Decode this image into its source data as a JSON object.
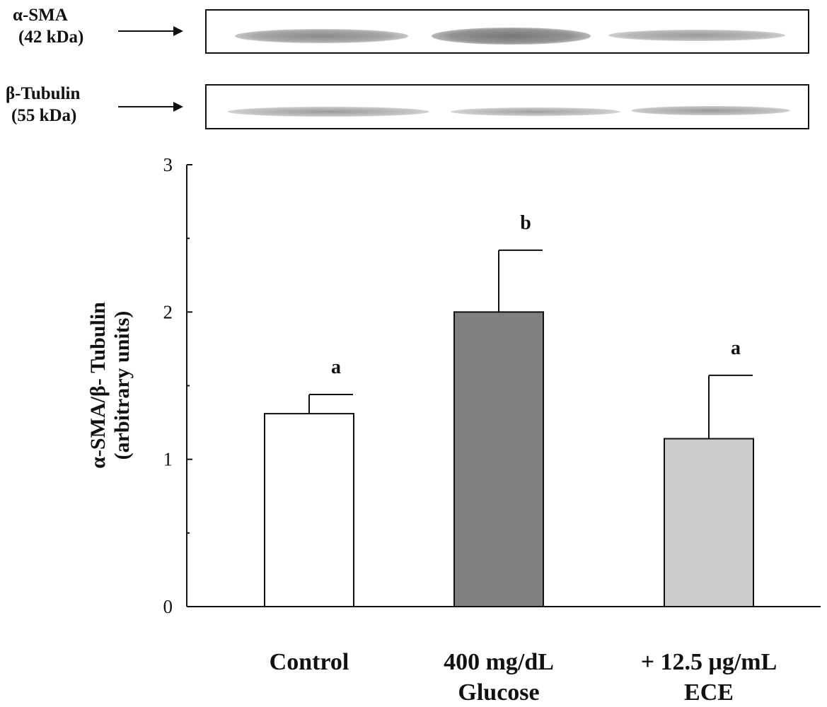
{
  "blot": {
    "rows": [
      {
        "protein": "α-SMA",
        "size": "(42 kDa)"
      },
      {
        "protein": "β-Tubulin",
        "size": "(55 kDa)"
      }
    ]
  },
  "chart_data": {
    "type": "bar",
    "title": "",
    "xlabel": "",
    "ylabel_line1": "α-SMA/β- Tubulin",
    "ylabel_line2": "(arbitrary units)",
    "ylim": [
      0,
      3
    ],
    "yticks": [
      0,
      1,
      2,
      3
    ],
    "categories": [
      {
        "line1": "Control",
        "line2": ""
      },
      {
        "line1": "400 mg/dL",
        "line2": "Glucose"
      },
      {
        "line1": "+ 12.5 μg/mL",
        "line2": "ECE"
      }
    ],
    "values": [
      1.31,
      2.0,
      1.14
    ],
    "errors": [
      0.13,
      0.42,
      0.43
    ],
    "significance": [
      "a",
      "b",
      "a"
    ],
    "colors": [
      "#ffffff",
      "#808080",
      "#cbcccd"
    ]
  }
}
